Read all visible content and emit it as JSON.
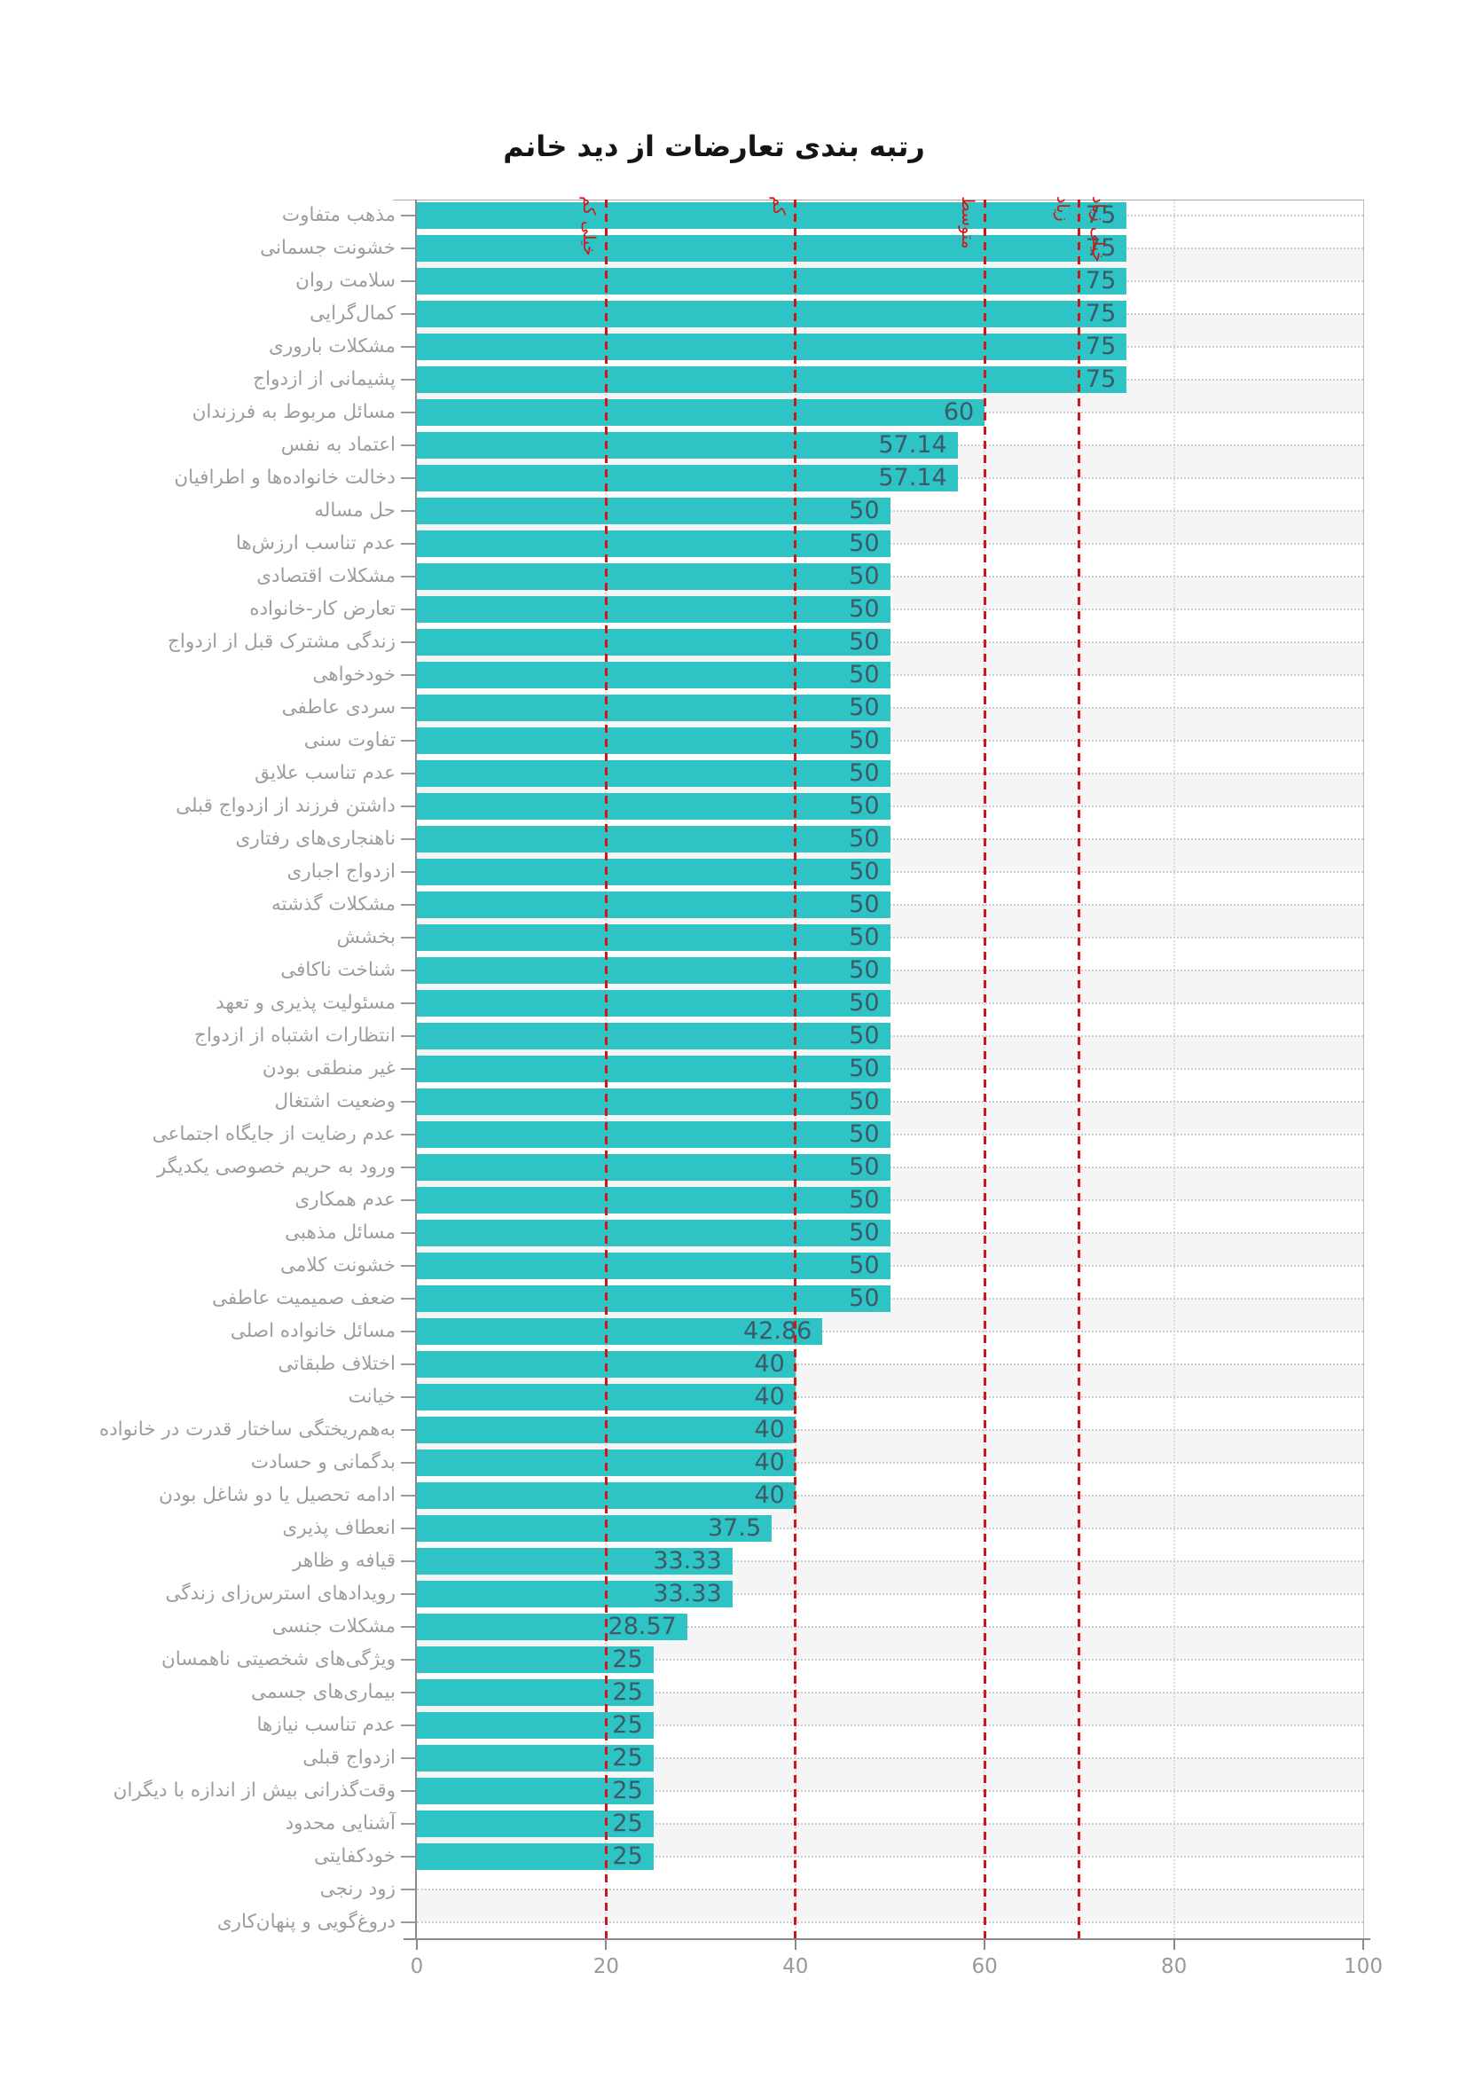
{
  "title": "رتبه بندی تعارضات از دید خانم",
  "chart_data": {
    "type": "bar",
    "orientation": "horizontal",
    "title": "رتبه بندی تعارضات از دید خانم",
    "xlabel": "",
    "ylabel": "",
    "xlim": [
      0,
      100
    ],
    "x_ticks": [
      0,
      20,
      40,
      60,
      80,
      100
    ],
    "grid": "dotted",
    "bar_color": "#2ec4c6",
    "value_label_color": "#3d5a68",
    "category_label_color": "#9d9d9d",
    "threshold_color": "#d41515",
    "categories": [
      "مذهب متفاوت",
      "خشونت جسمانی",
      "سلامت روان",
      "کمال‌گرایی",
      "مشکلات باروری",
      "پشیمانی از ازدواج",
      "مسائل مربوط به فرزندان",
      "اعتماد به نفس",
      "دخالت خانواده‌ها و اطرافیان",
      "حل مساله",
      "عدم تناسب ارزش‌ها",
      "مشکلات اقتصادی",
      "تعارض کار-خانواده",
      "زندگی مشترک قبل از ازدواج",
      "خودخواهی",
      "سردی عاطفی",
      "تفاوت سنی",
      "عدم تناسب علایق",
      "داشتن فرزند از ازدواج قبلی",
      "ناهنجاری‌های رفتاری",
      "ازدواج اجباری",
      "مشکلات گذشته",
      "بخشش",
      "شناخت ناکافی",
      "مسئولیت پذیری و تعهد",
      "انتظارات اشتباه از ازدواج",
      "غیر منطقی بودن",
      "وضعیت اشتغال",
      "عدم رضایت از جایگاه اجتماعی",
      "ورود به حریم خصوصی یکدیگر",
      "عدم همکاری",
      "مسائل مذهبی",
      "خشونت کلامی",
      "ضعف صمیمیت عاطفی",
      "مسائل خانواده اصلی",
      "اختلاف طبقاتی",
      "خیانت",
      "به‌هم‌ریختگی ساختار قدرت در خانواده",
      "بدگمانی و حسادت",
      "ادامه تحصیل یا دو شاغل بودن",
      "انعطاف پذیری",
      "قیافه و ظاهر",
      "رویدادهای استرس‌زای زندگی",
      "مشکلات جنسی",
      "ویژگی‌های شخصیتی ناهمسان",
      "بیماری‌های جسمی",
      "عدم تناسب نیازها",
      "ازدواج قبلی",
      "وقت‌گذرانی بیش از اندازه با دیگران",
      "آشنایی محدود",
      "خودکفایتی",
      "زود رنجی",
      "دروغ‌گویی و پنهان‌کاری"
    ],
    "values": [
      75,
      75,
      75,
      75,
      75,
      75,
      60,
      57.14,
      57.14,
      50,
      50,
      50,
      50,
      50,
      50,
      50,
      50,
      50,
      50,
      50,
      50,
      50,
      50,
      50,
      50,
      50,
      50,
      50,
      50,
      50,
      50,
      50,
      50,
      50,
      42.86,
      40,
      40,
      40,
      40,
      40,
      37.5,
      33.33,
      33.33,
      28.57,
      25,
      25,
      25,
      25,
      25,
      25,
      25,
      0,
      0
    ],
    "threshold_lines": [
      20,
      40,
      60,
      70
    ],
    "threshold_labels": [
      {
        "value": 20,
        "label": "خیلی کم",
        "side": "left"
      },
      {
        "value": 40,
        "label": "کم",
        "side": "left"
      },
      {
        "value": 60,
        "label": "متوسط",
        "side": "left"
      },
      {
        "value": 70,
        "label": "زیاد",
        "side": "left"
      },
      {
        "value": 70,
        "label": "خیلی زیاد",
        "side": "right"
      }
    ]
  }
}
